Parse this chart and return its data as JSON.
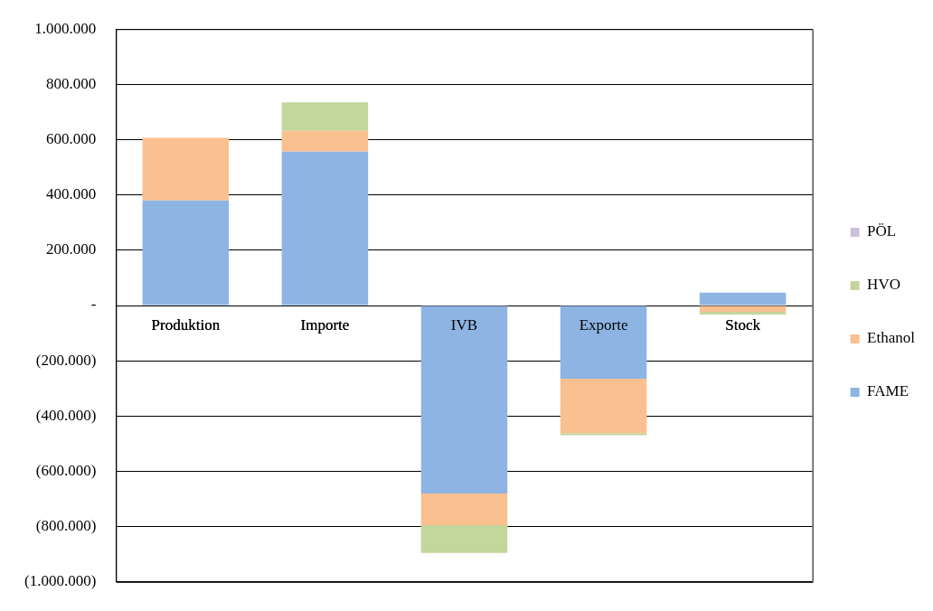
{
  "chart_data": {
    "type": "bar",
    "stacked": true,
    "categories": [
      "Produktion",
      "Importe",
      "IVB",
      "Exporte",
      "Stock"
    ],
    "series": [
      {
        "name": "FAME",
        "color": "#8eb4e3",
        "values": [
          380000,
          557000,
          -680000,
          -265000,
          47000
        ]
      },
      {
        "name": "Ethanol",
        "color": "#fac090",
        "values": [
          227000,
          75000,
          -115000,
          -197000,
          -23000
        ]
      },
      {
        "name": "HVO",
        "color": "#c3d69b",
        "values": [
          0,
          103000,
          -100000,
          -7000,
          -10000
        ]
      },
      {
        "name": "PÖL",
        "color": "#ccc1da",
        "values": [
          0,
          0,
          0,
          0,
          0
        ]
      }
    ],
    "ylim": [
      -1000000,
      1000000
    ],
    "yticks": [
      {
        "value": -1000000,
        "label": "(1.000.000)"
      },
      {
        "value": -800000,
        "label": "(800.000)"
      },
      {
        "value": -600000,
        "label": "(600.000)"
      },
      {
        "value": -400000,
        "label": "(400.000)"
      },
      {
        "value": -200000,
        "label": "(200.000)"
      },
      {
        "value": 0,
        "label": "-"
      },
      {
        "value": 200000,
        "label": "200.000"
      },
      {
        "value": 400000,
        "label": "400.000"
      },
      {
        "value": 600000,
        "label": "600.000"
      },
      {
        "value": 800000,
        "label": "800.000"
      },
      {
        "value": 1000000,
        "label": "1.000.000"
      }
    ],
    "grid": "y",
    "legend": "right"
  }
}
